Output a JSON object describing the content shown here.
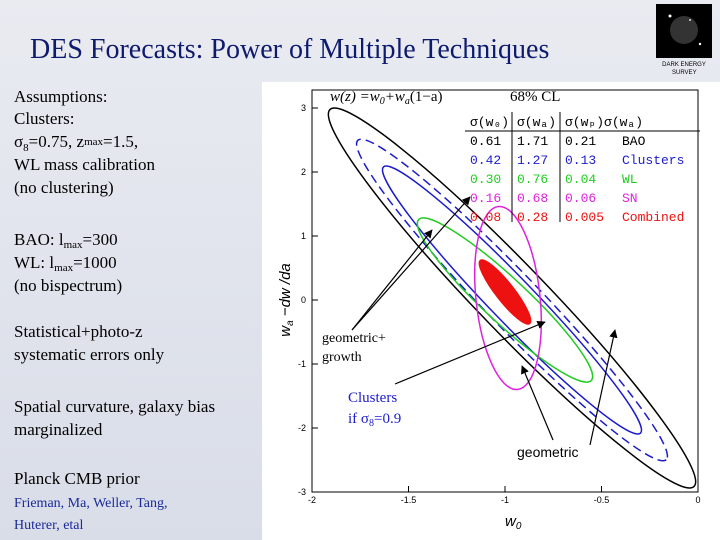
{
  "header": {
    "title": "DES Forecasts: Power of Multiple Techniques",
    "logo_text": [
      "DARK ENERGY",
      "SURVEY"
    ]
  },
  "left": {
    "assumptions": "Assumptions:",
    "clusters": "Clusters:",
    "sigma8_line": [
      "σ",
      "8",
      "=0.75, z",
      "max",
      "=1.5,"
    ],
    "wl_mass": "WL mass calibration",
    "no_clustering": "(no clustering)",
    "bao_line": [
      "BAO: l",
      "max",
      "=300"
    ],
    "wl_line": [
      "WL: l",
      "max",
      "=1000"
    ],
    "no_bispectrum": "(no bispectrum)",
    "stat1": "Statistical+photo-z",
    "stat2": "systematic errors only",
    "curv1": "Spatial curvature, galaxy bias",
    "curv2": "marginalized",
    "planck": "Planck CMB prior",
    "authors1": [
      "Frieman,",
      " Ma, Weller, Tang,"
    ],
    "authors2": "Huterer, etal"
  },
  "plot": {
    "model": [
      "w(z) =w",
      "0",
      "+w",
      "a",
      "(1−a)"
    ],
    "cl": "68% CL",
    "xticks": [
      -2,
      -1.5,
      -1,
      -0.5,
      0
    ],
    "yticks": [
      -3,
      -2,
      -1,
      0,
      1,
      2,
      3
    ],
    "xlabel": [
      "w",
      "0"
    ],
    "ylabel": [
      "w",
      "a",
      " −dw /da"
    ],
    "table": {
      "header": [
        "σ(w₀)",
        "σ(wₐ)",
        "σ(wₚ)σ(wₐ)"
      ],
      "rows": [
        {
          "values": [
            "0.61",
            "1.71",
            "0.21"
          ],
          "label": "BAO",
          "color": "#000000"
        },
        {
          "values": [
            "0.42",
            "1.27",
            "0.13"
          ],
          "label": "Clusters",
          "color": "#1c1ccc"
        },
        {
          "values": [
            "0.30",
            "0.76",
            "0.04"
          ],
          "label": "WL",
          "color": "#22cc22"
        },
        {
          "values": [
            "0.16",
            "0.68",
            "0.06"
          ],
          "label": "SN",
          "color": "#dd22dd"
        },
        {
          "values": [
            "0.08",
            "0.28",
            "0.005"
          ],
          "label": "Combined",
          "color": "#ee1111"
        }
      ]
    },
    "annotations": {
      "geo_growth": [
        "geometric+",
        "growth"
      ],
      "clusters_s8": [
        "Clusters",
        "if σ",
        "8",
        "=0.9"
      ],
      "geometric": "geometric"
    }
  }
}
